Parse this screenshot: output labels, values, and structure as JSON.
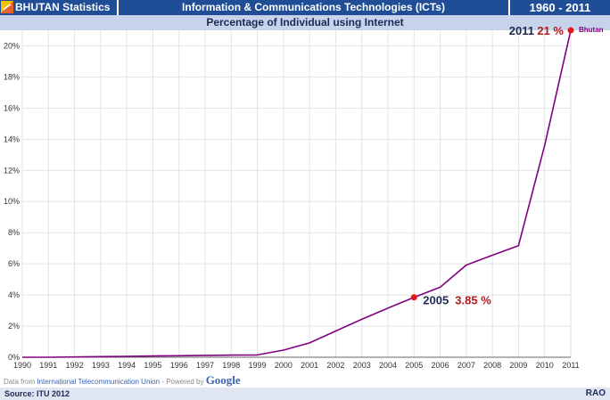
{
  "header": {
    "country_label": "BHUTAN Statistics",
    "topic": "Information & Communications Technologies (ICTs)",
    "years": "1960 - 2011"
  },
  "subtitle": "Percentage of Individual using Internet",
  "credit": {
    "prefix": "Data from",
    "source_link": "International Telecommunication Union",
    "powered": "- Powered by",
    "brand": "Google"
  },
  "footer": {
    "source": "Source: ITU 2012",
    "brand": "RAO"
  },
  "chart_data": {
    "type": "line",
    "title": "Percentage of Individual using Internet",
    "xlabel": "",
    "ylabel": "",
    "ylim": [
      0,
      21
    ],
    "yticks": [
      0,
      2,
      4,
      6,
      8,
      10,
      12,
      14,
      16,
      18,
      20
    ],
    "ytick_suffix": "%",
    "categories": [
      "1990",
      "1991",
      "1992",
      "1993",
      "1994",
      "1995",
      "1996",
      "1997",
      "1998",
      "1999",
      "2000",
      "2001",
      "2002",
      "2003",
      "2004",
      "2005",
      "2006",
      "2007",
      "2008",
      "2009",
      "2010",
      "2011"
    ],
    "series": [
      {
        "name": "Bhutan",
        "color": "#800080",
        "values": [
          0,
          0,
          0.02,
          0.04,
          0.06,
          0.08,
          0.1,
          0.12,
          0.14,
          0.15,
          0.46,
          0.92,
          1.68,
          2.44,
          3.15,
          3.85,
          4.5,
          5.92,
          6.55,
          7.17,
          13.6,
          21.0
        ]
      }
    ],
    "annotations": [
      {
        "year": "2011",
        "value_label": "21 %",
        "series_label": "Bhutan"
      },
      {
        "year": "2005",
        "value_label": "3.85 %"
      }
    ],
    "grid": true
  }
}
